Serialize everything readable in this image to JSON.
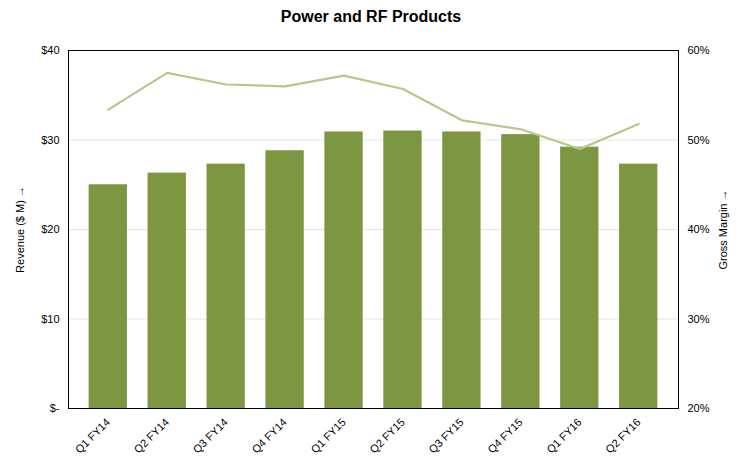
{
  "chart_data": {
    "type": "bar",
    "title": "Power and RF Products",
    "categories": [
      "Q1 FY14",
      "Q2 FY14",
      "Q3 FY14",
      "Q4 FY14",
      "Q1 FY15",
      "Q2 FY15",
      "Q3 FY15",
      "Q4 FY15",
      "Q1 FY16",
      "Q2 FY16"
    ],
    "series": [
      {
        "type": "bar",
        "color": "#7d9642",
        "values": [
          25.0,
          26.3,
          27.3,
          28.8,
          30.9,
          31.0,
          30.9,
          30.6,
          29.2,
          27.3
        ]
      },
      {
        "type": "line",
        "axis": "y2",
        "color": "#b5c98a",
        "values": [
          0.534,
          0.575,
          0.562,
          0.56,
          0.572,
          0.557,
          0.522,
          0.512,
          0.49,
          0.518
        ]
      }
    ],
    "ylabel": "Revenue ($ M)",
    "y2label": "Gross Margin",
    "ylim": [
      0,
      40
    ],
    "yticks": [
      {
        "value": 0,
        "label": "$-"
      },
      {
        "value": 10,
        "label": "$10"
      },
      {
        "value": 20,
        "label": "$20"
      },
      {
        "value": 30,
        "label": "$30"
      },
      {
        "value": 40,
        "label": "$40"
      }
    ],
    "y2lim": [
      0.2,
      0.6
    ],
    "y2ticks": [
      {
        "value": 0.2,
        "label": "20%"
      },
      {
        "value": 0.3,
        "label": "30%"
      },
      {
        "value": 0.4,
        "label": "40%"
      },
      {
        "value": 0.5,
        "label": "50%"
      },
      {
        "value": 0.6,
        "label": "60%"
      }
    ],
    "grid": true
  }
}
